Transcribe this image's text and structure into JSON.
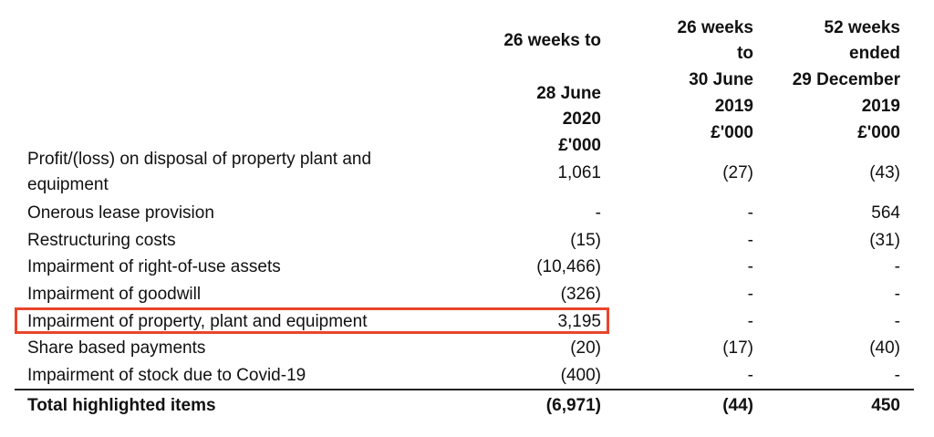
{
  "headers": [
    {
      "lines": [
        "26 weeks to",
        "",
        "28 June",
        "2020",
        "£'000"
      ]
    },
    {
      "lines": [
        "26 weeks",
        "to",
        "30 June",
        "2019",
        "£'000"
      ]
    },
    {
      "lines": [
        "52 weeks",
        "ended",
        "29 December",
        "2019",
        "£'000"
      ]
    }
  ],
  "rows": [
    {
      "label_line1": "Profit/(loss) on disposal of property plant and",
      "label_line2": "equipment",
      "v1": "1,061",
      "v2": "(27)",
      "v3": "(43)"
    },
    {
      "label": "Onerous lease provision",
      "v1": "-",
      "v2": "-",
      "v3": "564"
    },
    {
      "label": "Restructuring costs",
      "v1": "(15)",
      "v2": "-",
      "v3": "(31)"
    },
    {
      "label": "Impairment of right-of-use assets",
      "v1": "(10,466)",
      "v2": "-",
      "v3": "-"
    },
    {
      "label": "Impairment of goodwill",
      "v1": "(326)",
      "v2": "-",
      "v3": "-"
    },
    {
      "label": "Impairment of property, plant and equipment",
      "v1": "3,195",
      "v2": "-",
      "v3": "-"
    },
    {
      "label": "Share based payments",
      "v1": "(20)",
      "v2": "(17)",
      "v3": "(40)"
    },
    {
      "label": "Impairment of stock due to Covid-19",
      "v1": "(400)",
      "v2": "-",
      "v3": "-"
    }
  ],
  "total": {
    "label": "Total highlighted items",
    "v1": "(6,971)",
    "v2": "(44)",
    "v3": "450"
  },
  "colors": {
    "highlight_border": "#e8452c"
  }
}
